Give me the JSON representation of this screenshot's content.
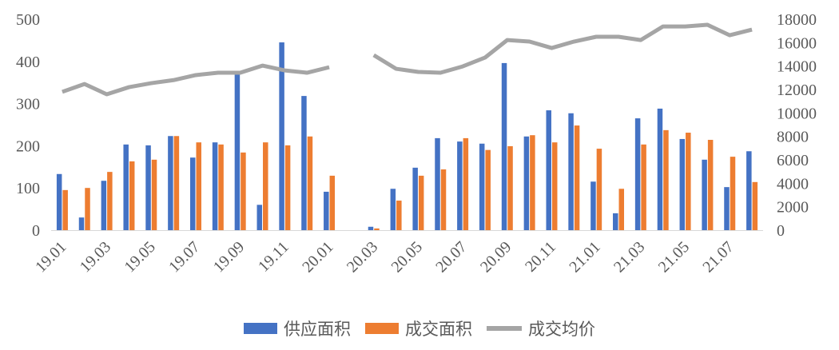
{
  "chart_data": {
    "type": "bar+line",
    "categories": [
      "19.01",
      "19.02",
      "19.03",
      "19.04",
      "19.05",
      "19.06",
      "19.07",
      "19.08",
      "19.09",
      "19.10",
      "19.11",
      "19.12",
      "20.01",
      "20.02",
      "20.03",
      "20.04",
      "20.05",
      "20.06",
      "20.07",
      "20.08",
      "20.09",
      "20.10",
      "20.11",
      "20.12",
      "21.01",
      "21.02",
      "21.03",
      "21.04",
      "21.05",
      "21.06",
      "21.07",
      "21.08"
    ],
    "x_tick_labels": [
      "19.01",
      "19.03",
      "19.05",
      "19.07",
      "19.09",
      "19.11",
      "20.01",
      "20.03",
      "20.05",
      "20.07",
      "20.09",
      "20.11",
      "21.01",
      "21.03",
      "21.05",
      "21.07"
    ],
    "series": [
      {
        "name": "供应面积",
        "type": "bar",
        "axis": "left",
        "color": "#4472C4",
        "values": [
          133,
          30,
          117,
          203,
          201,
          223,
          172,
          208,
          369,
          60,
          445,
          318,
          91,
          null,
          8,
          98,
          148,
          218,
          210,
          205,
          396,
          222,
          284,
          277,
          115,
          40,
          265,
          288,
          216,
          167,
          102,
          187
        ]
      },
      {
        "name": "成交面积",
        "type": "bar",
        "axis": "left",
        "color": "#ED7D31",
        "values": [
          95,
          100,
          138,
          163,
          167,
          223,
          208,
          203,
          184,
          208,
          201,
          222,
          129,
          null,
          4,
          70,
          129,
          144,
          218,
          190,
          199,
          225,
          208,
          248,
          193,
          98,
          203,
          237,
          231,
          214,
          174,
          114
        ]
      },
      {
        "name": "成交均价",
        "type": "line",
        "axis": "right",
        "color": "#A5A5A5",
        "values": [
          11800,
          12470,
          11590,
          12200,
          12540,
          12800,
          13230,
          13430,
          13430,
          14040,
          13630,
          13430,
          13900,
          null,
          14930,
          13770,
          13500,
          13430,
          13970,
          14720,
          16220,
          16090,
          15540,
          16090,
          16500,
          16500,
          16220,
          17380,
          17380,
          17520,
          16630,
          17110
        ]
      }
    ],
    "y_left": {
      "range": [
        0,
        500
      ],
      "ticks": [
        0,
        100,
        200,
        300,
        400,
        500
      ]
    },
    "y_right": {
      "range": [
        0,
        18000
      ],
      "ticks": [
        0,
        2000,
        4000,
        6000,
        8000,
        10000,
        12000,
        14000,
        16000,
        18000
      ]
    },
    "grid": false,
    "legend_position": "bottom"
  }
}
